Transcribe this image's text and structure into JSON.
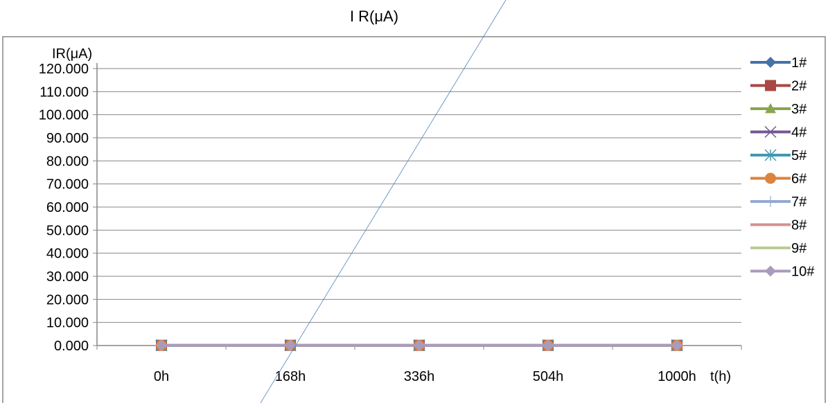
{
  "chart_data": {
    "type": "line",
    "title": "I R(μA)",
    "ylabel": "IR(μA)",
    "xlabel": "t(h)",
    "categories": [
      "0h",
      "168h",
      "336h",
      "504h",
      "1000h"
    ],
    "ylim": [
      0,
      120
    ],
    "ytick_labels": [
      "0.000",
      "10.000",
      "20.000",
      "30.000",
      "40.000",
      "50.000",
      "60.000",
      "70.000",
      "80.000",
      "90.000",
      "100.000",
      "110.000",
      "120.000"
    ],
    "grid": "horizontal",
    "legend_position": "right",
    "series": [
      {
        "name": "1#",
        "values": [
          0.1,
          0.1,
          0.1,
          0.1,
          0.1
        ],
        "color": "#4572A7",
        "marker": "diamond"
      },
      {
        "name": "2#",
        "values": [
          0.1,
          0.1,
          0.1,
          0.1,
          0.1
        ],
        "color": "#AA4643",
        "marker": "square"
      },
      {
        "name": "3#",
        "values": [
          0.1,
          0.1,
          0.1,
          0.1,
          0.1
        ],
        "color": "#89A54E",
        "marker": "triangle"
      },
      {
        "name": "4#",
        "values": [
          0.1,
          0.1,
          0.1,
          0.1,
          0.1
        ],
        "color": "#71588F",
        "marker": "x"
      },
      {
        "name": "5#",
        "values": [
          0.1,
          0.1,
          0.1,
          0.1,
          0.1
        ],
        "color": "#4198AF",
        "marker": "star"
      },
      {
        "name": "6#",
        "values": [
          0.1,
          0.1,
          0.1,
          0.1,
          0.1
        ],
        "color": "#DB843D",
        "marker": "circle"
      },
      {
        "name": "7#",
        "values": [
          0.1,
          0.1,
          0.1,
          0.1,
          0.1
        ],
        "color": "#93A9CF",
        "marker": "plus"
      },
      {
        "name": "8#",
        "values": [
          0.1,
          0.1,
          0.1,
          0.1,
          0.1
        ],
        "color": "#D19392",
        "marker": "none"
      },
      {
        "name": "9#",
        "values": [
          0.1,
          0.1,
          0.1,
          0.1,
          0.1
        ],
        "color": "#B9CD96",
        "marker": "none"
      },
      {
        "name": "10#",
        "values": [
          0.1,
          0.1,
          0.1,
          0.1,
          0.1
        ],
        "color": "#A99BBD",
        "marker": "diamond"
      }
    ]
  }
}
